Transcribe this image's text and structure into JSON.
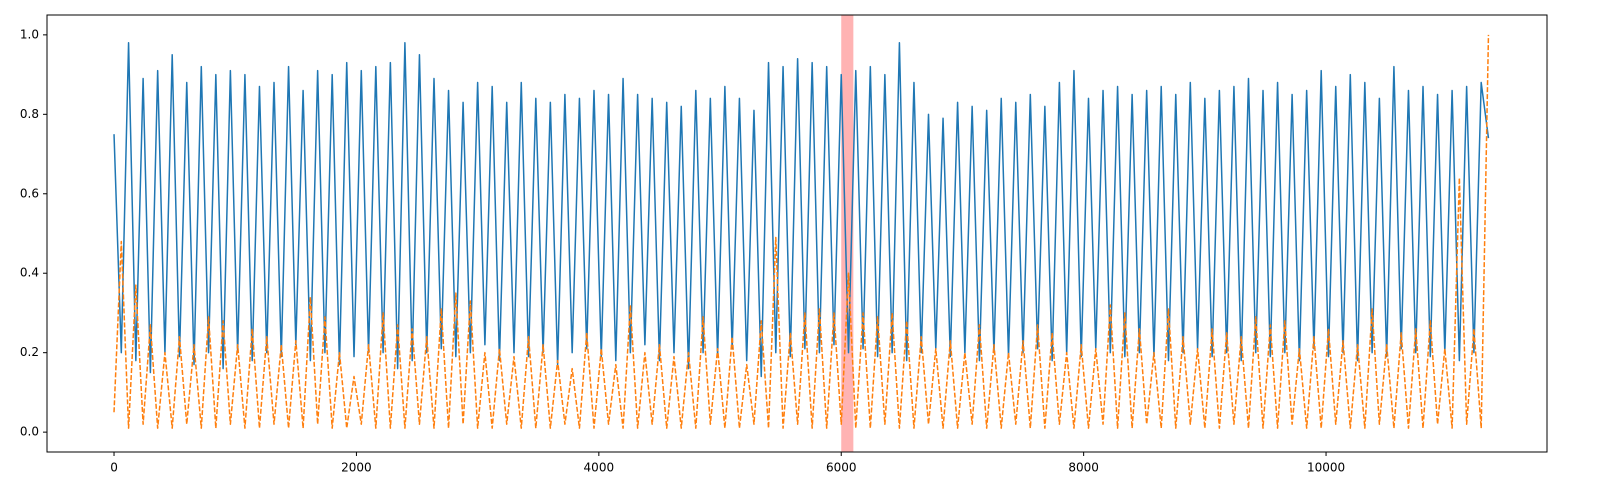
{
  "chart_data": {
    "type": "line",
    "x": [
      0,
      60,
      120,
      180,
      240,
      300,
      360,
      420,
      480,
      540,
      600,
      660,
      720,
      780,
      840,
      900,
      960,
      1020,
      1080,
      1140,
      1200,
      1260,
      1320,
      1380,
      1440,
      1500,
      1560,
      1620,
      1680,
      1740,
      1800,
      1860,
      1920,
      1980,
      2040,
      2100,
      2160,
      2220,
      2280,
      2340,
      2400,
      2460,
      2520,
      2580,
      2640,
      2700,
      2760,
      2820,
      2880,
      2940,
      3000,
      3060,
      3120,
      3180,
      3240,
      3300,
      3360,
      3420,
      3480,
      3540,
      3600,
      3660,
      3720,
      3780,
      3840,
      3900,
      3960,
      4020,
      4080,
      4140,
      4200,
      4260,
      4320,
      4380,
      4440,
      4500,
      4560,
      4620,
      4680,
      4740,
      4800,
      4860,
      4920,
      4980,
      5040,
      5100,
      5160,
      5220,
      5280,
      5340,
      5400,
      5460,
      5520,
      5580,
      5640,
      5700,
      5760,
      5820,
      5880,
      5940,
      6000,
      6060,
      6120,
      6180,
      6240,
      6300,
      6360,
      6420,
      6480,
      6540,
      6600,
      6660,
      6720,
      6780,
      6840,
      6900,
      6960,
      7020,
      7080,
      7140,
      7200,
      7260,
      7320,
      7380,
      7440,
      7500,
      7560,
      7620,
      7680,
      7740,
      7800,
      7860,
      7920,
      7980,
      8040,
      8100,
      8160,
      8220,
      8280,
      8340,
      8400,
      8460,
      8520,
      8580,
      8640,
      8700,
      8760,
      8820,
      8880,
      8940,
      9000,
      9060,
      9120,
      9180,
      9240,
      9300,
      9360,
      9420,
      9480,
      9540,
      9600,
      9660,
      9720,
      9780,
      9840,
      9900,
      9960,
      10020,
      10080,
      10140,
      10200,
      10260,
      10320,
      10380,
      10440,
      10500,
      10560,
      10620,
      10680,
      10740,
      10800,
      10860,
      10920,
      10980,
      11040,
      11100,
      11160,
      11220,
      11280,
      11340
    ],
    "series": [
      {
        "color": "#1f77b4",
        "linestyle": "solid",
        "values": [
          0.75,
          0.2,
          0.98,
          0.18,
          0.89,
          0.15,
          0.91,
          0.2,
          0.95,
          0.19,
          0.88,
          0.17,
          0.92,
          0.2,
          0.9,
          0.16,
          0.91,
          0.2,
          0.9,
          0.18,
          0.87,
          0.2,
          0.88,
          0.19,
          0.92,
          0.22,
          0.86,
          0.18,
          0.91,
          0.2,
          0.9,
          0.17,
          0.93,
          0.19,
          0.91,
          0.2,
          0.92,
          0.2,
          0.93,
          0.16,
          0.98,
          0.18,
          0.95,
          0.2,
          0.89,
          0.21,
          0.86,
          0.19,
          0.83,
          0.2,
          0.88,
          0.22,
          0.87,
          0.18,
          0.83,
          0.2,
          0.88,
          0.19,
          0.84,
          0.2,
          0.83,
          0.17,
          0.85,
          0.2,
          0.84,
          0.21,
          0.86,
          0.19,
          0.85,
          0.18,
          0.89,
          0.2,
          0.85,
          0.22,
          0.84,
          0.18,
          0.83,
          0.2,
          0.82,
          0.16,
          0.86,
          0.2,
          0.84,
          0.19,
          0.87,
          0.21,
          0.84,
          0.18,
          0.81,
          0.14,
          0.93,
          0.2,
          0.92,
          0.19,
          0.94,
          0.21,
          0.93,
          0.2,
          0.92,
          0.22,
          0.9,
          0.2,
          0.91,
          0.21,
          0.92,
          0.19,
          0.9,
          0.2,
          0.98,
          0.18,
          0.88,
          0.2,
          0.8,
          0.21,
          0.79,
          0.19,
          0.83,
          0.2,
          0.82,
          0.18,
          0.81,
          0.2,
          0.84,
          0.19,
          0.83,
          0.2,
          0.85,
          0.21,
          0.82,
          0.18,
          0.88,
          0.2,
          0.91,
          0.19,
          0.84,
          0.21,
          0.86,
          0.2,
          0.87,
          0.19,
          0.85,
          0.2,
          0.86,
          0.19,
          0.87,
          0.18,
          0.85,
          0.2,
          0.88,
          0.21,
          0.84,
          0.19,
          0.86,
          0.2,
          0.87,
          0.18,
          0.89,
          0.2,
          0.86,
          0.19,
          0.88,
          0.2,
          0.85,
          0.18,
          0.86,
          0.21,
          0.91,
          0.19,
          0.87,
          0.2,
          0.9,
          0.18,
          0.88,
          0.2,
          0.84,
          0.19,
          0.92,
          0.21,
          0.86,
          0.2,
          0.87,
          0.19,
          0.85,
          0.2,
          0.86,
          0.18,
          0.87,
          0.2,
          0.88,
          0.74
        ]
      },
      {
        "color": "#ff7f0e",
        "linestyle": "dashed",
        "values": [
          0.05,
          0.48,
          0.01,
          0.37,
          0.02,
          0.27,
          0.01,
          0.2,
          0.01,
          0.24,
          0.02,
          0.22,
          0.01,
          0.29,
          0.01,
          0.28,
          0.02,
          0.22,
          0.01,
          0.26,
          0.01,
          0.24,
          0.02,
          0.22,
          0.01,
          0.23,
          0.01,
          0.34,
          0.02,
          0.29,
          0.01,
          0.2,
          0.01,
          0.14,
          0.02,
          0.22,
          0.01,
          0.3,
          0.01,
          0.27,
          0.01,
          0.26,
          0.02,
          0.24,
          0.01,
          0.31,
          0.01,
          0.35,
          0.02,
          0.33,
          0.01,
          0.2,
          0.01,
          0.21,
          0.02,
          0.19,
          0.01,
          0.24,
          0.01,
          0.22,
          0.01,
          0.18,
          0.02,
          0.16,
          0.01,
          0.25,
          0.01,
          0.21,
          0.02,
          0.17,
          0.01,
          0.32,
          0.01,
          0.2,
          0.02,
          0.22,
          0.01,
          0.19,
          0.01,
          0.2,
          0.01,
          0.29,
          0.02,
          0.21,
          0.01,
          0.24,
          0.01,
          0.17,
          0.02,
          0.28,
          0.01,
          0.49,
          0.01,
          0.25,
          0.02,
          0.3,
          0.01,
          0.31,
          0.01,
          0.3,
          0.02,
          0.4,
          0.01,
          0.3,
          0.01,
          0.29,
          0.02,
          0.3,
          0.01,
          0.28,
          0.01,
          0.24,
          0.02,
          0.21,
          0.01,
          0.23,
          0.01,
          0.2,
          0.02,
          0.27,
          0.01,
          0.22,
          0.01,
          0.2,
          0.02,
          0.23,
          0.01,
          0.27,
          0.01,
          0.25,
          0.02,
          0.2,
          0.01,
          0.22,
          0.01,
          0.21,
          0.02,
          0.32,
          0.01,
          0.3,
          0.01,
          0.26,
          0.02,
          0.2,
          0.01,
          0.31,
          0.01,
          0.24,
          0.02,
          0.21,
          0.01,
          0.26,
          0.01,
          0.25,
          0.02,
          0.24,
          0.01,
          0.29,
          0.01,
          0.27,
          0.01,
          0.28,
          0.02,
          0.21,
          0.01,
          0.24,
          0.01,
          0.26,
          0.02,
          0.23,
          0.01,
          0.22,
          0.01,
          0.31,
          0.02,
          0.22,
          0.01,
          0.25,
          0.01,
          0.26,
          0.01,
          0.28,
          0.02,
          0.21,
          0.01,
          0.64,
          0.02,
          0.26,
          0.01,
          1.0
        ]
      }
    ],
    "highlight_span": [
      6000,
      6100
    ],
    "highlight_color": "#ff9999",
    "xlim": [
      -553,
      11823
    ],
    "xticks": [
      0,
      2000,
      4000,
      6000,
      8000,
      10000
    ],
    "ylim": [
      -0.05,
      1.05
    ],
    "yticks": [
      {
        "value": 0,
        "label": "0.0"
      },
      {
        "value": 0.2,
        "label": "0.2"
      },
      {
        "value": 0.4,
        "label": "0.4"
      },
      {
        "value": 0.6,
        "label": "0.6"
      },
      {
        "value": 0.8,
        "label": "0.8"
      },
      {
        "value": 1,
        "label": "1.0"
      }
    ],
    "grid": false
  }
}
